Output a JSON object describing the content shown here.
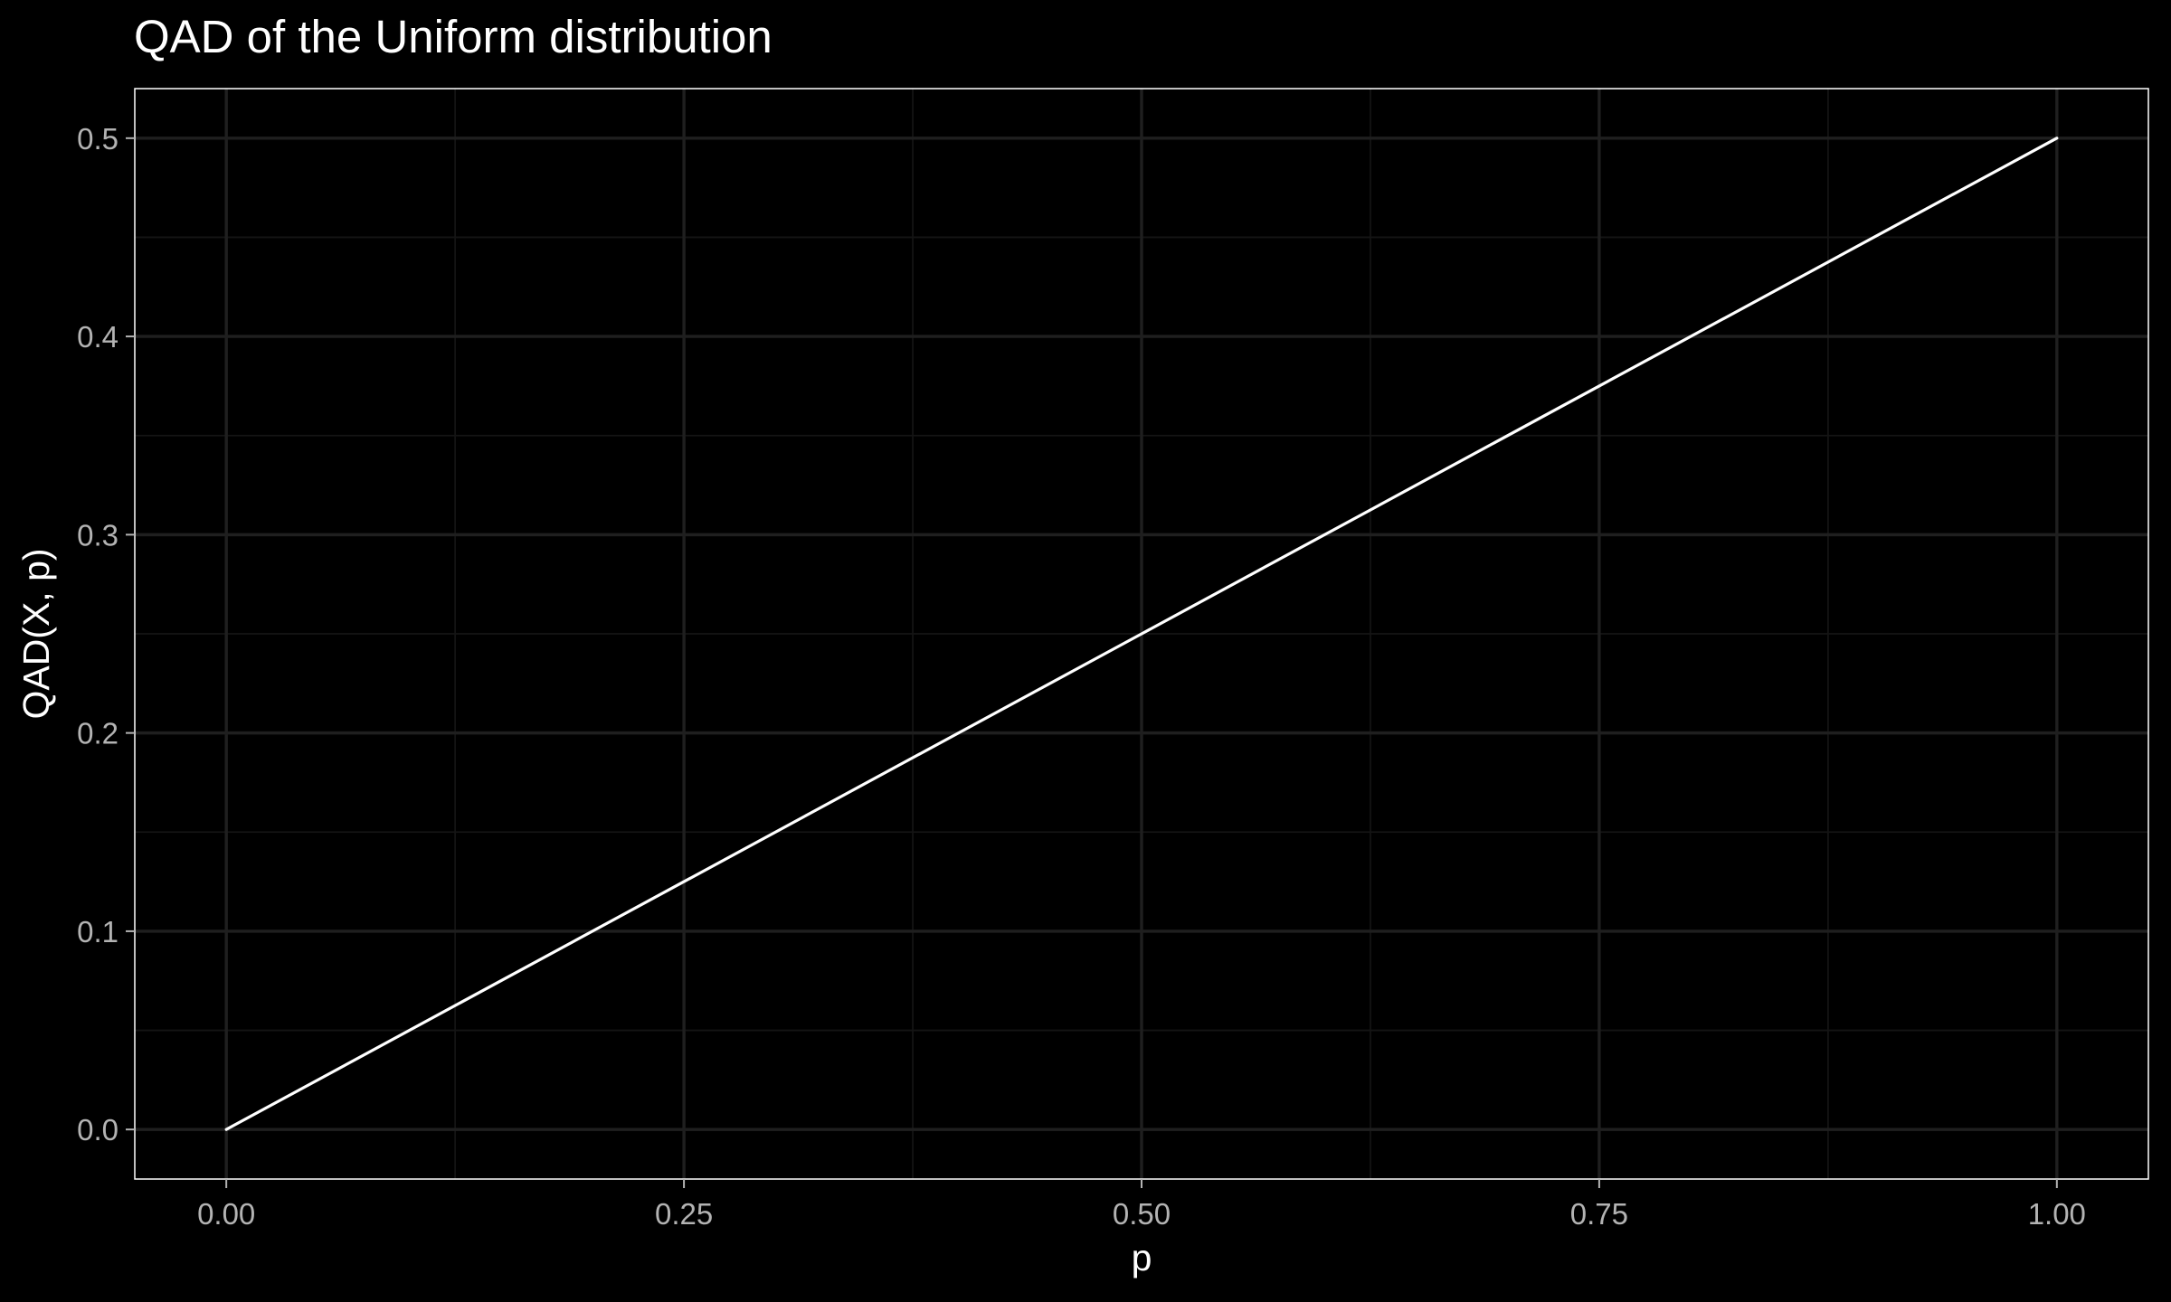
{
  "chart_data": {
    "type": "line",
    "title": "QAD of the Uniform distribution",
    "xlabel": "p",
    "ylabel": "QAD(X, p)",
    "xlim": [
      -0.05,
      1.05
    ],
    "ylim": [
      -0.025,
      0.525
    ],
    "x_ticks": [
      0,
      0.25,
      0.5,
      0.75,
      1
    ],
    "x_tick_labels": [
      "0.00",
      "0.25",
      "0.50",
      "0.75",
      "1.00"
    ],
    "y_ticks": [
      0,
      0.1,
      0.2,
      0.3,
      0.4,
      0.5
    ],
    "y_tick_labels": [
      "0.0",
      "0.1",
      "0.2",
      "0.3",
      "0.4",
      "0.5"
    ],
    "x_minor_ticks": [
      0.125,
      0.375,
      0.625,
      0.875
    ],
    "y_minor_ticks": [
      0.05,
      0.15,
      0.25,
      0.35,
      0.45
    ],
    "grid": true,
    "legend": "none",
    "series": [
      {
        "x": [
          0,
          0.25,
          0.5,
          0.75,
          1
        ],
        "values": [
          0,
          0.125,
          0.25,
          0.375,
          0.5
        ]
      }
    ],
    "colors": {
      "background": "#000000",
      "panel_border": "#ffffff",
      "grid_major": "#1f1f1f",
      "grid_minor": "#141414",
      "line": "#ffffff",
      "tick_text": "#b3b3b3",
      "title_text": "#ffffff"
    }
  }
}
